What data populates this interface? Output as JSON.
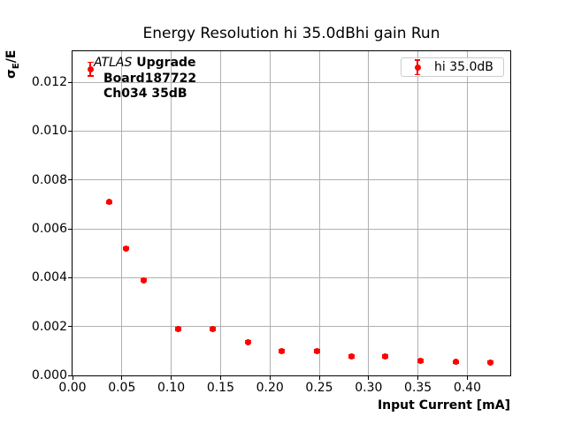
{
  "window": {
    "background": "#ffffff"
  },
  "chart_data": {
    "type": "scatter",
    "title": "Energy Resolution hi 35.0dBhi gain Run",
    "xlabel": "Input Current [mA]",
    "ylabel": "σ_E/E",
    "ylabel_parts": {
      "sigma": "σ",
      "sub": "E",
      "rest": "/E"
    },
    "xlim": [
      0,
      0.4435
    ],
    "ylim": [
      0,
      0.01327
    ],
    "xticks": [
      0.0,
      0.05,
      0.1,
      0.15,
      0.2,
      0.25,
      0.3,
      0.35,
      0.4
    ],
    "xtick_labels": [
      "0.00",
      "0.05",
      "0.10",
      "0.15",
      "0.20",
      "0.25",
      "0.30",
      "0.35",
      "0.40"
    ],
    "yticks": [
      0.0,
      0.002,
      0.004,
      0.006,
      0.008,
      0.01,
      0.012
    ],
    "ytick_labels": [
      "0.000",
      "0.002",
      "0.004",
      "0.006",
      "0.008",
      "0.010",
      "0.012"
    ],
    "grid": true,
    "legend_position": "upper right",
    "series": [
      {
        "name": "hi 35.0dB",
        "color": "#ff0000",
        "marker": "circle",
        "x": [
          0.018,
          0.037,
          0.054,
          0.072,
          0.107,
          0.142,
          0.178,
          0.212,
          0.248,
          0.283,
          0.317,
          0.353,
          0.388,
          0.423
        ],
        "y": [
          0.01253,
          0.0071,
          0.0052,
          0.0039,
          0.0019,
          0.0019,
          0.00137,
          0.00099,
          0.00099,
          0.00078,
          0.00078,
          0.0006,
          0.00055,
          0.00053
        ],
        "yerr": [
          0.00028,
          5e-05,
          5e-05,
          5e-05,
          5e-05,
          5e-05,
          5e-05,
          5e-05,
          5e-05,
          5e-05,
          5e-05,
          5e-05,
          5e-05,
          5e-05
        ]
      }
    ]
  },
  "annotation": {
    "experiment": "ATLAS",
    "label": "Upgrade",
    "board": "Board187722",
    "channel": "Ch034 35dB"
  },
  "legend": {
    "label": "hi 35.0dB"
  },
  "colors": {
    "marker": "#ff0000",
    "grid": "#b0b0b0",
    "axis": "#000000",
    "legend_border": "#cccccc",
    "text": "#000000"
  }
}
